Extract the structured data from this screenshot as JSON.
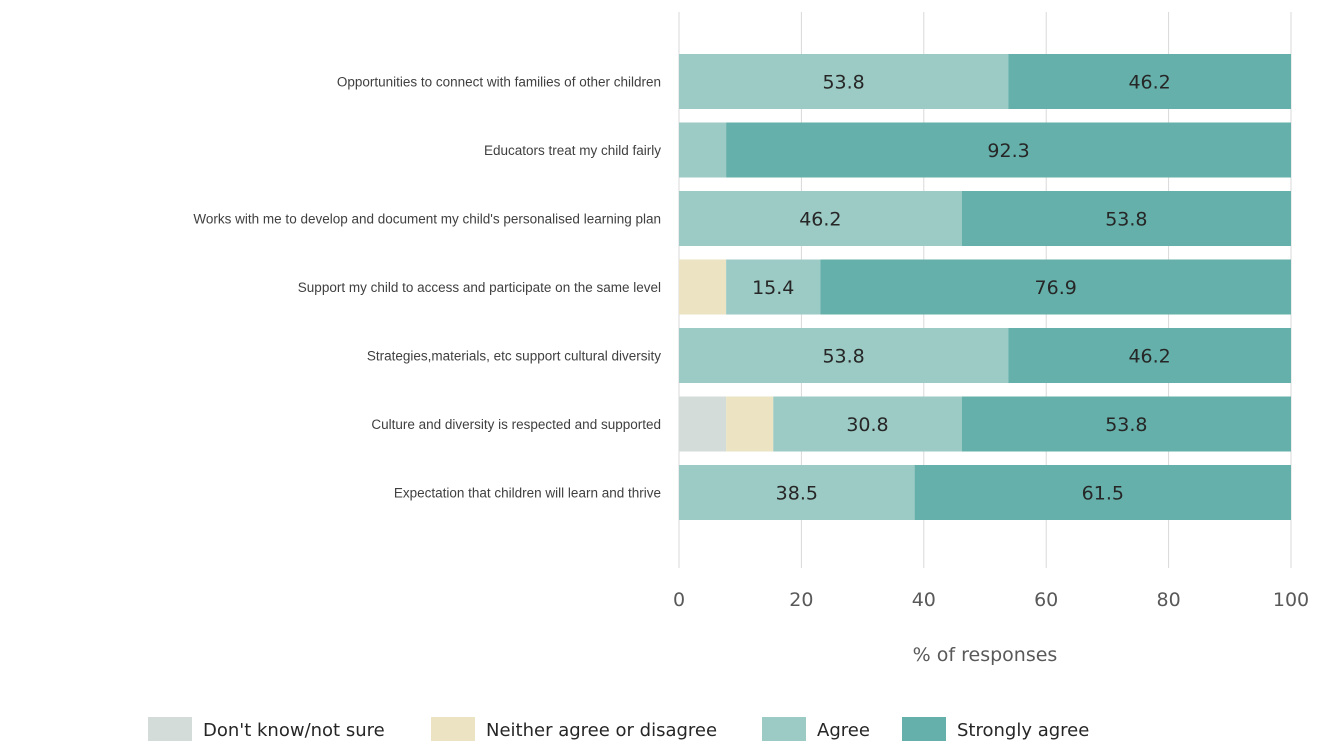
{
  "chart_data": {
    "type": "bar",
    "orientation": "horizontal",
    "stacked": true,
    "categories": [
      "Opportunities to connect with families of other children",
      "Educators treat my child fairly",
      "Works with me to develop and document my child's personalised learning plan",
      "Support my child to access and participate on the same level",
      "Strategies,materials, etc support cultural diversity",
      "Culture and diversity is respected and supported",
      "Expectation that children will learn and thrive"
    ],
    "series": [
      {
        "name": "Don't know/not sure",
        "color": "#d3dcd8",
        "values": [
          0,
          0,
          0,
          0,
          0,
          7.7,
          0
        ],
        "labels": [
          "",
          "",
          "",
          "",
          "",
          "",
          ""
        ]
      },
      {
        "name": "Neither agree or disagree",
        "color": "#ebe3c1",
        "values": [
          0,
          0,
          0,
          7.7,
          0,
          7.7,
          0
        ],
        "labels": [
          "",
          "",
          "",
          "",
          "",
          "",
          ""
        ]
      },
      {
        "name": "Agree",
        "color": "#9ccac4",
        "values": [
          53.8,
          7.7,
          46.2,
          15.4,
          53.8,
          30.8,
          38.5
        ],
        "labels": [
          "53.8",
          "",
          "46.2",
          "15.4",
          "53.8",
          "30.8",
          "38.5"
        ]
      },
      {
        "name": "Strongly agree",
        "color": "#65b0aa",
        "values": [
          46.2,
          92.3,
          53.8,
          76.9,
          46.2,
          53.8,
          61.5
        ],
        "labels": [
          "46.2",
          "92.3",
          "53.8",
          "76.9",
          "46.2",
          "53.8",
          "61.5"
        ]
      }
    ],
    "xlabel": "% of responses",
    "ylabel": "",
    "xlim": [
      0,
      100
    ],
    "xticks": [
      "0",
      "20",
      "40",
      "60",
      "80",
      "100"
    ],
    "grid": true,
    "legend_position": "bottom"
  }
}
